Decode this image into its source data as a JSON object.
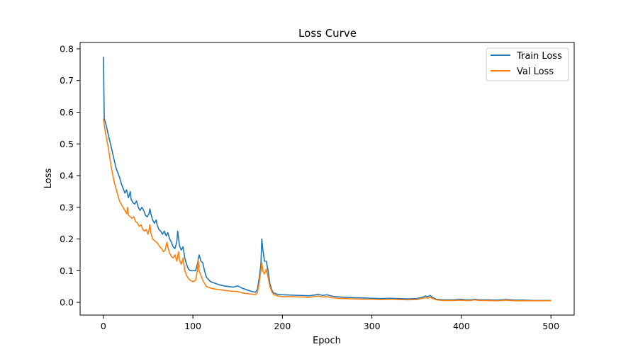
{
  "chart_data": {
    "type": "line",
    "title": "Loss Curve",
    "xlabel": "Epoch",
    "ylabel": "Loss",
    "xlim": [
      -26,
      526
    ],
    "ylim": [
      -0.04,
      0.82
    ],
    "xticks": [
      0,
      100,
      200,
      300,
      400,
      500
    ],
    "yticks": [
      0.0,
      0.1,
      0.2,
      0.3,
      0.4,
      0.5,
      0.6,
      0.7,
      0.8
    ],
    "xtick_labels": [
      "0",
      "100",
      "200",
      "300",
      "400",
      "500"
    ],
    "ytick_labels": [
      "0.0",
      "0.1",
      "0.2",
      "0.3",
      "0.4",
      "0.5",
      "0.6",
      "0.7",
      "0.8"
    ],
    "grid": false,
    "legend_position": "top-right",
    "series": [
      {
        "name": "Train Loss",
        "color": "#1f77b4",
        "points": [
          [
            0,
            0.775
          ],
          [
            1,
            0.58
          ],
          [
            3,
            0.56
          ],
          [
            5,
            0.535
          ],
          [
            8,
            0.5
          ],
          [
            10,
            0.475
          ],
          [
            12,
            0.45
          ],
          [
            14,
            0.425
          ],
          [
            16,
            0.41
          ],
          [
            18,
            0.395
          ],
          [
            20,
            0.375
          ],
          [
            22,
            0.36
          ],
          [
            24,
            0.345
          ],
          [
            26,
            0.355
          ],
          [
            27,
            0.34
          ],
          [
            28,
            0.33
          ],
          [
            30,
            0.35
          ],
          [
            31,
            0.325
          ],
          [
            33,
            0.315
          ],
          [
            35,
            0.31
          ],
          [
            37,
            0.32
          ],
          [
            39,
            0.3
          ],
          [
            41,
            0.29
          ],
          [
            43,
            0.3
          ],
          [
            45,
            0.29
          ],
          [
            47,
            0.275
          ],
          [
            49,
            0.27
          ],
          [
            51,
            0.28
          ],
          [
            52,
            0.295
          ],
          [
            53,
            0.28
          ],
          [
            55,
            0.26
          ],
          [
            57,
            0.25
          ],
          [
            59,
            0.26
          ],
          [
            60,
            0.245
          ],
          [
            62,
            0.23
          ],
          [
            64,
            0.225
          ],
          [
            66,
            0.215
          ],
          [
            68,
            0.225
          ],
          [
            70,
            0.21
          ],
          [
            72,
            0.22
          ],
          [
            74,
            0.2
          ],
          [
            76,
            0.19
          ],
          [
            78,
            0.175
          ],
          [
            80,
            0.17
          ],
          [
            82,
            0.19
          ],
          [
            83,
            0.225
          ],
          [
            85,
            0.18
          ],
          [
            87,
            0.165
          ],
          [
            89,
            0.175
          ],
          [
            91,
            0.14
          ],
          [
            93,
            0.12
          ],
          [
            95,
            0.105
          ],
          [
            97,
            0.1
          ],
          [
            100,
            0.1
          ],
          [
            103,
            0.1
          ],
          [
            105,
            0.12
          ],
          [
            107,
            0.15
          ],
          [
            109,
            0.13
          ],
          [
            111,
            0.125
          ],
          [
            113,
            0.1
          ],
          [
            115,
            0.08
          ],
          [
            118,
            0.07
          ],
          [
            120,
            0.065
          ],
          [
            125,
            0.06
          ],
          [
            130,
            0.055
          ],
          [
            135,
            0.052
          ],
          [
            140,
            0.05
          ],
          [
            145,
            0.048
          ],
          [
            150,
            0.052
          ],
          [
            155,
            0.045
          ],
          [
            160,
            0.04
          ],
          [
            165,
            0.035
          ],
          [
            170,
            0.032
          ],
          [
            172,
            0.04
          ],
          [
            174,
            0.075
          ],
          [
            176,
            0.12
          ],
          [
            177,
            0.2
          ],
          [
            178,
            0.17
          ],
          [
            180,
            0.13
          ],
          [
            182,
            0.13
          ],
          [
            184,
            0.1
          ],
          [
            186,
            0.06
          ],
          [
            188,
            0.04
          ],
          [
            190,
            0.03
          ],
          [
            195,
            0.025
          ],
          [
            200,
            0.024
          ],
          [
            210,
            0.023
          ],
          [
            220,
            0.022
          ],
          [
            230,
            0.021
          ],
          [
            240,
            0.025
          ],
          [
            245,
            0.022
          ],
          [
            250,
            0.024
          ],
          [
            255,
            0.02
          ],
          [
            260,
            0.018
          ],
          [
            270,
            0.016
          ],
          [
            280,
            0.015
          ],
          [
            290,
            0.014
          ],
          [
            300,
            0.013
          ],
          [
            310,
            0.012
          ],
          [
            320,
            0.013
          ],
          [
            330,
            0.012
          ],
          [
            340,
            0.011
          ],
          [
            350,
            0.012
          ],
          [
            355,
            0.015
          ],
          [
            360,
            0.02
          ],
          [
            362,
            0.018
          ],
          [
            365,
            0.022
          ],
          [
            368,
            0.015
          ],
          [
            372,
            0.01
          ],
          [
            380,
            0.008
          ],
          [
            390,
            0.008
          ],
          [
            400,
            0.01
          ],
          [
            405,
            0.008
          ],
          [
            410,
            0.008
          ],
          [
            415,
            0.01
          ],
          [
            420,
            0.008
          ],
          [
            430,
            0.008
          ],
          [
            440,
            0.007
          ],
          [
            450,
            0.009
          ],
          [
            460,
            0.007
          ],
          [
            470,
            0.007
          ],
          [
            480,
            0.006
          ],
          [
            490,
            0.006
          ],
          [
            500,
            0.006
          ]
        ]
      },
      {
        "name": "Val Loss",
        "color": "#ff7f0e",
        "points": [
          [
            0,
            0.58
          ],
          [
            2,
            0.54
          ],
          [
            4,
            0.51
          ],
          [
            6,
            0.48
          ],
          [
            8,
            0.44
          ],
          [
            10,
            0.41
          ],
          [
            12,
            0.38
          ],
          [
            14,
            0.36
          ],
          [
            16,
            0.34
          ],
          [
            18,
            0.32
          ],
          [
            20,
            0.31
          ],
          [
            22,
            0.3
          ],
          [
            24,
            0.29
          ],
          [
            26,
            0.28
          ],
          [
            27,
            0.3
          ],
          [
            28,
            0.275
          ],
          [
            30,
            0.27
          ],
          [
            32,
            0.265
          ],
          [
            34,
            0.27
          ],
          [
            36,
            0.255
          ],
          [
            38,
            0.25
          ],
          [
            40,
            0.24
          ],
          [
            42,
            0.245
          ],
          [
            44,
            0.23
          ],
          [
            46,
            0.225
          ],
          [
            48,
            0.23
          ],
          [
            50,
            0.215
          ],
          [
            52,
            0.245
          ],
          [
            53,
            0.22
          ],
          [
            55,
            0.2
          ],
          [
            57,
            0.195
          ],
          [
            59,
            0.19
          ],
          [
            61,
            0.185
          ],
          [
            63,
            0.175
          ],
          [
            65,
            0.17
          ],
          [
            67,
            0.16
          ],
          [
            69,
            0.165
          ],
          [
            71,
            0.19
          ],
          [
            72,
            0.175
          ],
          [
            74,
            0.155
          ],
          [
            76,
            0.145
          ],
          [
            78,
            0.14
          ],
          [
            80,
            0.15
          ],
          [
            82,
            0.13
          ],
          [
            84,
            0.16
          ],
          [
            85,
            0.135
          ],
          [
            87,
            0.12
          ],
          [
            89,
            0.14
          ],
          [
            91,
            0.1
          ],
          [
            93,
            0.085
          ],
          [
            95,
            0.075
          ],
          [
            97,
            0.07
          ],
          [
            100,
            0.065
          ],
          [
            103,
            0.07
          ],
          [
            105,
            0.1
          ],
          [
            106,
            0.135
          ],
          [
            107,
            0.1
          ],
          [
            109,
            0.085
          ],
          [
            111,
            0.07
          ],
          [
            113,
            0.06
          ],
          [
            115,
            0.05
          ],
          [
            120,
            0.045
          ],
          [
            125,
            0.042
          ],
          [
            130,
            0.04
          ],
          [
            135,
            0.038
          ],
          [
            140,
            0.036
          ],
          [
            145,
            0.035
          ],
          [
            150,
            0.034
          ],
          [
            155,
            0.03
          ],
          [
            160,
            0.028
          ],
          [
            165,
            0.026
          ],
          [
            170,
            0.025
          ],
          [
            172,
            0.03
          ],
          [
            174,
            0.06
          ],
          [
            176,
            0.1
          ],
          [
            177,
            0.125
          ],
          [
            178,
            0.1
          ],
          [
            180,
            0.09
          ],
          [
            182,
            0.105
          ],
          [
            184,
            0.08
          ],
          [
            186,
            0.05
          ],
          [
            188,
            0.035
          ],
          [
            190,
            0.025
          ],
          [
            195,
            0.02
          ],
          [
            200,
            0.018
          ],
          [
            210,
            0.018
          ],
          [
            220,
            0.017
          ],
          [
            230,
            0.016
          ],
          [
            240,
            0.02
          ],
          [
            245,
            0.017
          ],
          [
            250,
            0.018
          ],
          [
            255,
            0.015
          ],
          [
            260,
            0.013
          ],
          [
            270,
            0.012
          ],
          [
            280,
            0.011
          ],
          [
            290,
            0.01
          ],
          [
            300,
            0.01
          ],
          [
            310,
            0.009
          ],
          [
            320,
            0.01
          ],
          [
            330,
            0.009
          ],
          [
            340,
            0.008
          ],
          [
            350,
            0.009
          ],
          [
            355,
            0.012
          ],
          [
            360,
            0.015
          ],
          [
            362,
            0.013
          ],
          [
            365,
            0.016
          ],
          [
            368,
            0.012
          ],
          [
            372,
            0.008
          ],
          [
            380,
            0.006
          ],
          [
            390,
            0.006
          ],
          [
            400,
            0.007
          ],
          [
            405,
            0.006
          ],
          [
            410,
            0.006
          ],
          [
            415,
            0.008
          ],
          [
            420,
            0.006
          ],
          [
            430,
            0.006
          ],
          [
            440,
            0.005
          ],
          [
            450,
            0.007
          ],
          [
            460,
            0.005
          ],
          [
            470,
            0.005
          ],
          [
            480,
            0.005
          ],
          [
            490,
            0.005
          ],
          [
            500,
            0.005
          ]
        ]
      }
    ]
  }
}
